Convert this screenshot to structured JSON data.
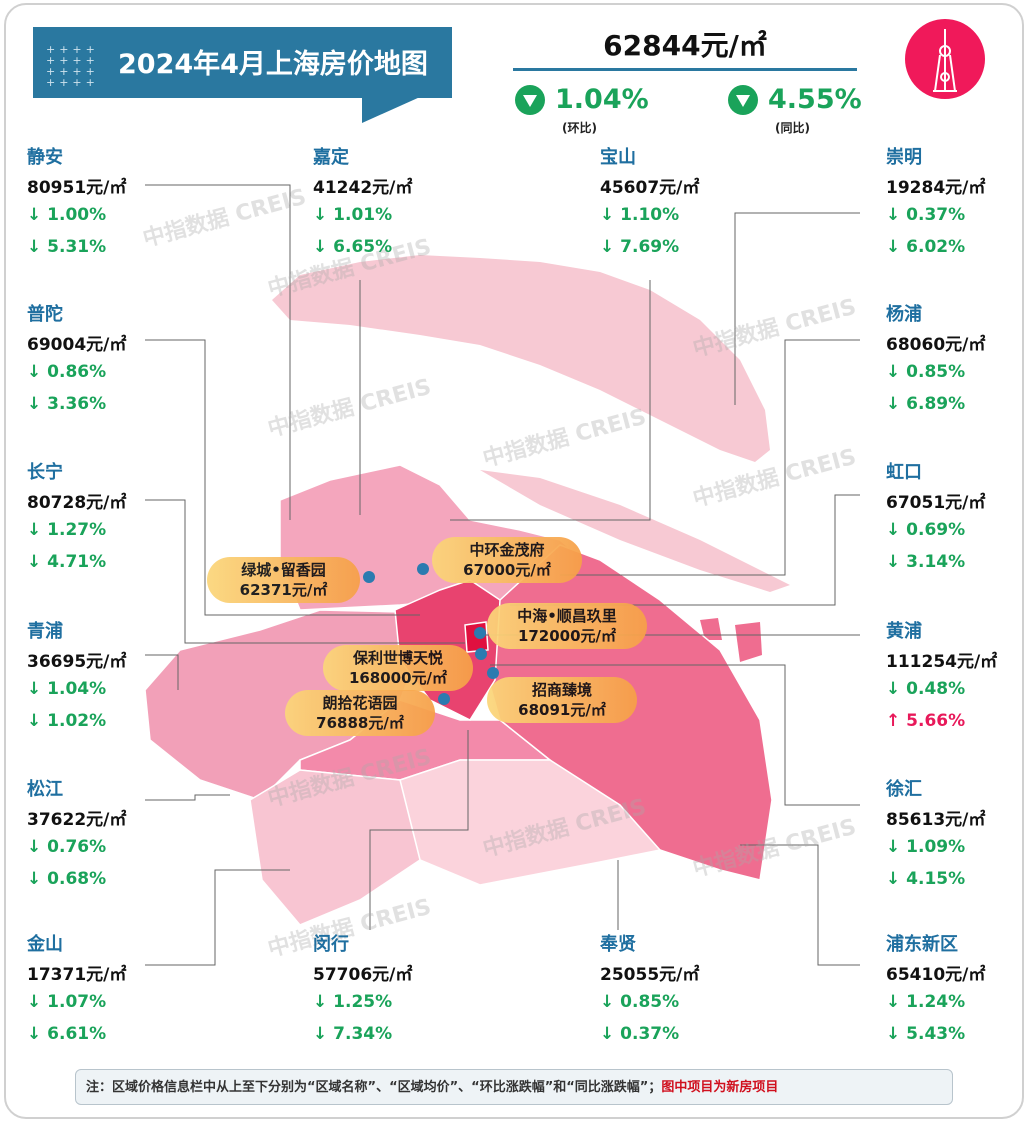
{
  "header": {
    "title": "2024年4月上海房价地图",
    "total_price": "62844元/㎡",
    "mom": "1.04%",
    "mom_label": "(环比)",
    "yoy": "4.55%",
    "yoy_label": "(同比)",
    "mom_direction": "down",
    "yoy_direction": "down"
  },
  "colors": {
    "title_bg": "#2a78a0",
    "down": "#1aa35a",
    "up": "#e8195a",
    "district_name": "#1f6fa0",
    "icon_bg": "#f0195a"
  },
  "icon": "oriental-pearl-tower-icon",
  "watermark": "中指数据 CREIS",
  "districts": [
    {
      "name": "静安",
      "price": "80951元/㎡",
      "mom": "↓ 1.00%",
      "yoy": "↓ 5.31%"
    },
    {
      "name": "嘉定",
      "price": "41242元/㎡",
      "mom": "↓ 1.01%",
      "yoy": "↓ 6.65%"
    },
    {
      "name": "宝山",
      "price": "45607元/㎡",
      "mom": "↓ 1.10%",
      "yoy": "↓ 7.69%"
    },
    {
      "name": "崇明",
      "price": "19284元/㎡",
      "mom": "↓ 0.37%",
      "yoy": "↓ 6.02%"
    },
    {
      "name": "普陀",
      "price": "69004元/㎡",
      "mom": "↓ 0.86%",
      "yoy": "↓ 3.36%"
    },
    {
      "name": "杨浦",
      "price": "68060元/㎡",
      "mom": "↓ 0.85%",
      "yoy": "↓ 6.89%"
    },
    {
      "name": "长宁",
      "price": "80728元/㎡",
      "mom": "↓ 1.27%",
      "yoy": "↓ 4.71%"
    },
    {
      "name": "虹口",
      "price": "67051元/㎡",
      "mom": "↓ 0.69%",
      "yoy": "↓ 3.14%"
    },
    {
      "name": "青浦",
      "price": "36695元/㎡",
      "mom": "↓ 1.04%",
      "yoy": "↓ 1.02%"
    },
    {
      "name": "黄浦",
      "price": "111254元/㎡",
      "mom": "↓ 0.48%",
      "yoy": "↑ 5.66%"
    },
    {
      "name": "松江",
      "price": "37622元/㎡",
      "mom": "↓ 0.76%",
      "yoy": "↓ 0.68%"
    },
    {
      "name": "徐汇",
      "price": "85613元/㎡",
      "mom": "↓ 1.09%",
      "yoy": "↓ 4.15%"
    },
    {
      "name": "金山",
      "price": "17371元/㎡",
      "mom": "↓ 1.07%",
      "yoy": "↓ 6.61%"
    },
    {
      "name": "闵行",
      "price": "57706元/㎡",
      "mom": "↓ 1.25%",
      "yoy": "↓ 7.34%"
    },
    {
      "name": "奉贤",
      "price": "25055元/㎡",
      "mom": "↓ 0.85%",
      "yoy": "↓ 0.37%"
    },
    {
      "name": "浦东新区",
      "price": "65410元/㎡",
      "mom": "↓ 1.24%",
      "yoy": "↓ 5.43%"
    }
  ],
  "projects": [
    {
      "name": "绿城•留香园",
      "price": "62371元/㎡"
    },
    {
      "name": "中环金茂府",
      "price": "67000元/㎡"
    },
    {
      "name": "中海•顺昌玖里",
      "price": "172000元/㎡"
    },
    {
      "name": "保利世博天悦",
      "price": "168000元/㎡"
    },
    {
      "name": "朗拾花语园",
      "price": "76888元/㎡"
    },
    {
      "name": "招商臻境",
      "price": "68091元/㎡"
    }
  ],
  "note": {
    "text": "注：区域价格信息栏中从上至下分别为“区域名称”、“区域均价”、“环比涨跌幅”和“同比涨跌幅”；",
    "highlight": "图中项目为新房项目"
  }
}
